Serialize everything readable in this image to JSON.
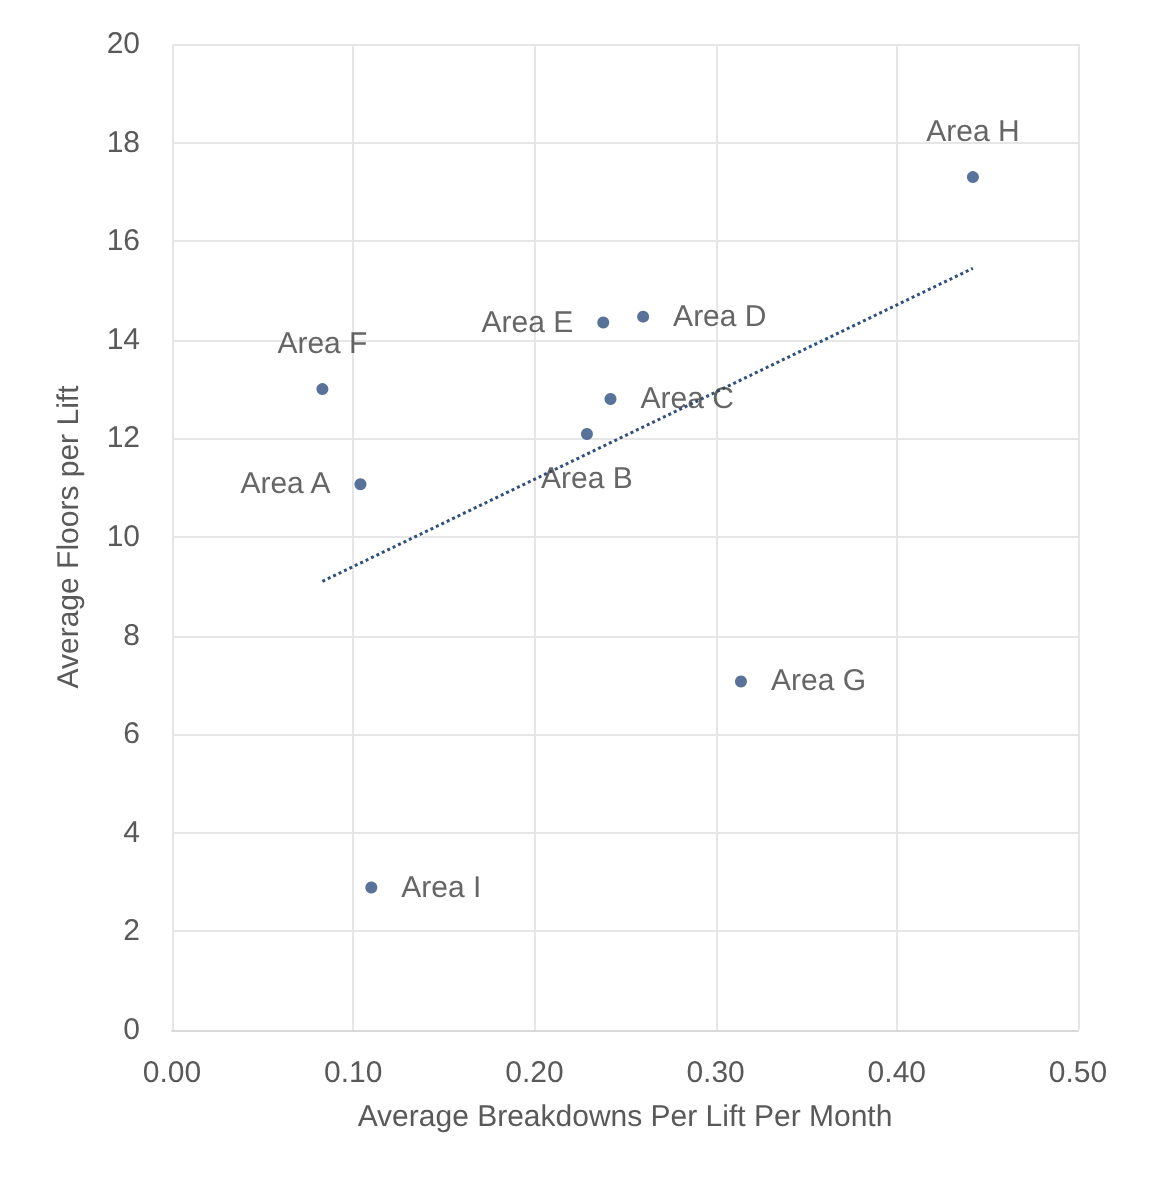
{
  "chart_data": {
    "type": "scatter",
    "xlabel": "Average Breakdowns Per Lift Per Month",
    "ylabel": "Average Floors per Lift",
    "x": [
      0.104,
      0.229,
      0.242,
      0.26,
      0.238,
      0.083,
      0.314,
      0.442,
      0.11
    ],
    "series": [
      {
        "color": "#2f4f7f",
        "values": [
          11.07,
          12.09,
          12.8,
          14.47,
          14.35,
          13.0,
          7.07,
          17.3,
          2.89
        ]
      },
      {
        "type": "line",
        "color": "#2f4f7f",
        "x": [
          0.083,
          0.442
        ],
        "values": [
          9.1,
          15.45
        ],
        "line_style": "dotted",
        "marker": "none"
      }
    ],
    "annotations": [
      {
        "text": "Area A",
        "x": 0.104,
        "y": 11.07
      },
      {
        "text": "Area B",
        "x": 0.229,
        "y": 12.09
      },
      {
        "text": "Area C",
        "x": 0.242,
        "y": 12.8
      },
      {
        "text": "Area D",
        "x": 0.26,
        "y": 14.47
      },
      {
        "text": "Area E",
        "x": 0.238,
        "y": 14.35
      },
      {
        "text": "Area F",
        "x": 0.083,
        "y": 13.0
      },
      {
        "text": "Area G",
        "x": 0.314,
        "y": 7.07
      },
      {
        "text": "Area H",
        "x": 0.442,
        "y": 17.3
      },
      {
        "text": "Area I",
        "x": 0.11,
        "y": 2.89
      }
    ],
    "xlim": [
      0,
      0.5
    ],
    "xticks": [
      {
        "value": 0,
        "label": "0.00"
      },
      {
        "value": 0.1,
        "label": "0.10"
      },
      {
        "value": 0.2,
        "label": "0.20"
      },
      {
        "value": 0.3,
        "label": "0.30"
      },
      {
        "value": 0.4,
        "label": "0.40"
      },
      {
        "value": 0.5,
        "label": "0.50"
      }
    ],
    "ylim": [
      0,
      20
    ],
    "yticks": [
      0,
      2,
      4,
      6,
      8,
      10,
      12,
      14,
      16,
      18,
      20
    ],
    "grid": true,
    "marker": "circle"
  }
}
